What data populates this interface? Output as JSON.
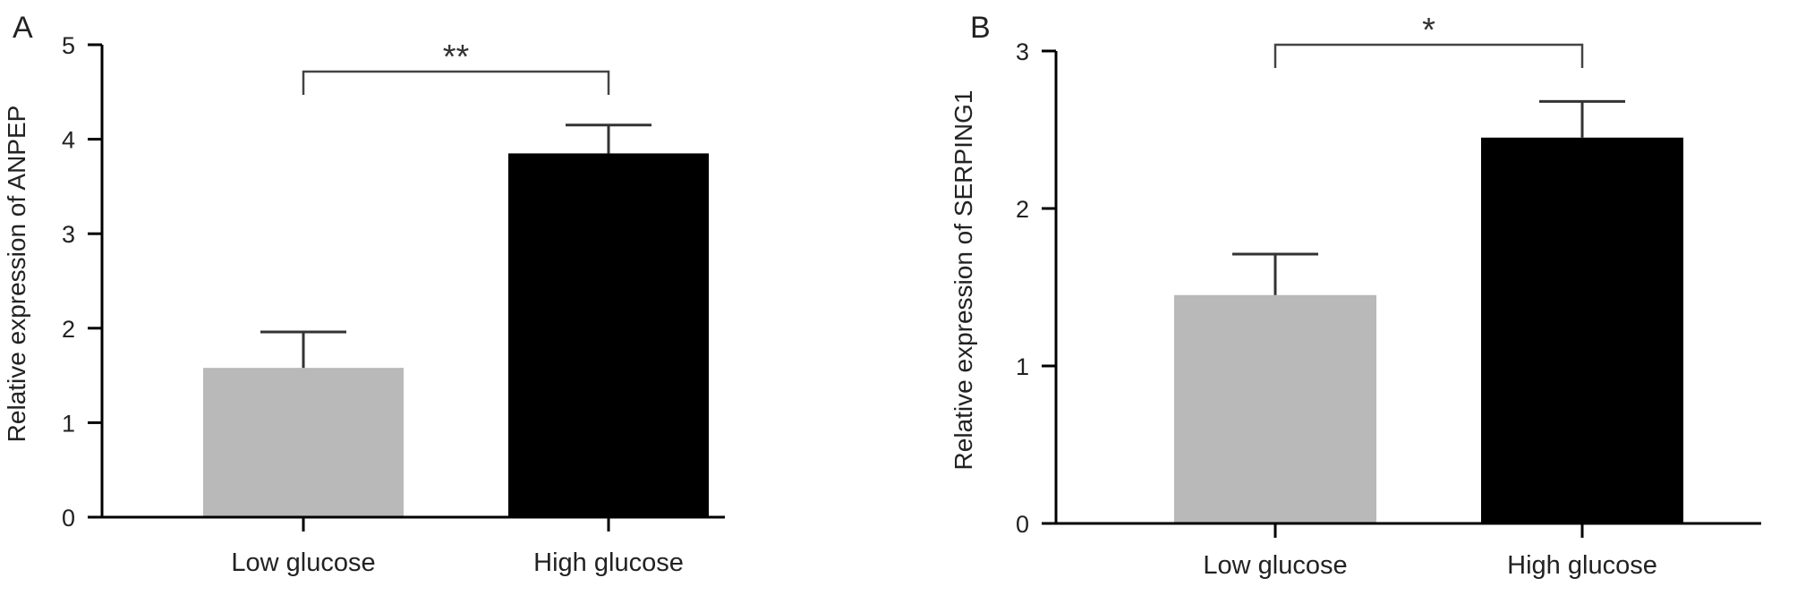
{
  "colors": {
    "low_glucose": "#b9b9b9",
    "high_glucose": "#000000",
    "axis": "#000000",
    "error_bar": "#333333",
    "bracket": "#444444"
  },
  "chart_data": [
    {
      "type": "bar",
      "panel": "A",
      "categories": [
        "Low glucose",
        "High glucose"
      ],
      "values": [
        1.58,
        3.85
      ],
      "errors": [
        0.38,
        0.3
      ],
      "colors": [
        "#b9b9b9",
        "#000000"
      ],
      "title": "",
      "xlabel": "",
      "ylabel": "Relative expression of ANPEP",
      "ylim": [
        0,
        5
      ],
      "yticks": [
        "0",
        "1",
        "2",
        "3",
        "4",
        "5"
      ],
      "grid": false,
      "significance": {
        "label": "**",
        "between": [
          0,
          1
        ]
      }
    },
    {
      "type": "bar",
      "panel": "B",
      "categories": [
        "Low glucose",
        "High glucose"
      ],
      "values": [
        1.45,
        2.45
      ],
      "errors": [
        0.26,
        0.23
      ],
      "colors": [
        "#b9b9b9",
        "#000000"
      ],
      "title": "",
      "xlabel": "",
      "ylabel": "Relative expression of SERPING1",
      "ylim": [
        0,
        3
      ],
      "yticks": [
        "0",
        "1",
        "2",
        "3"
      ],
      "grid": false,
      "significance": {
        "label": "*",
        "between": [
          0,
          1
        ]
      }
    }
  ]
}
